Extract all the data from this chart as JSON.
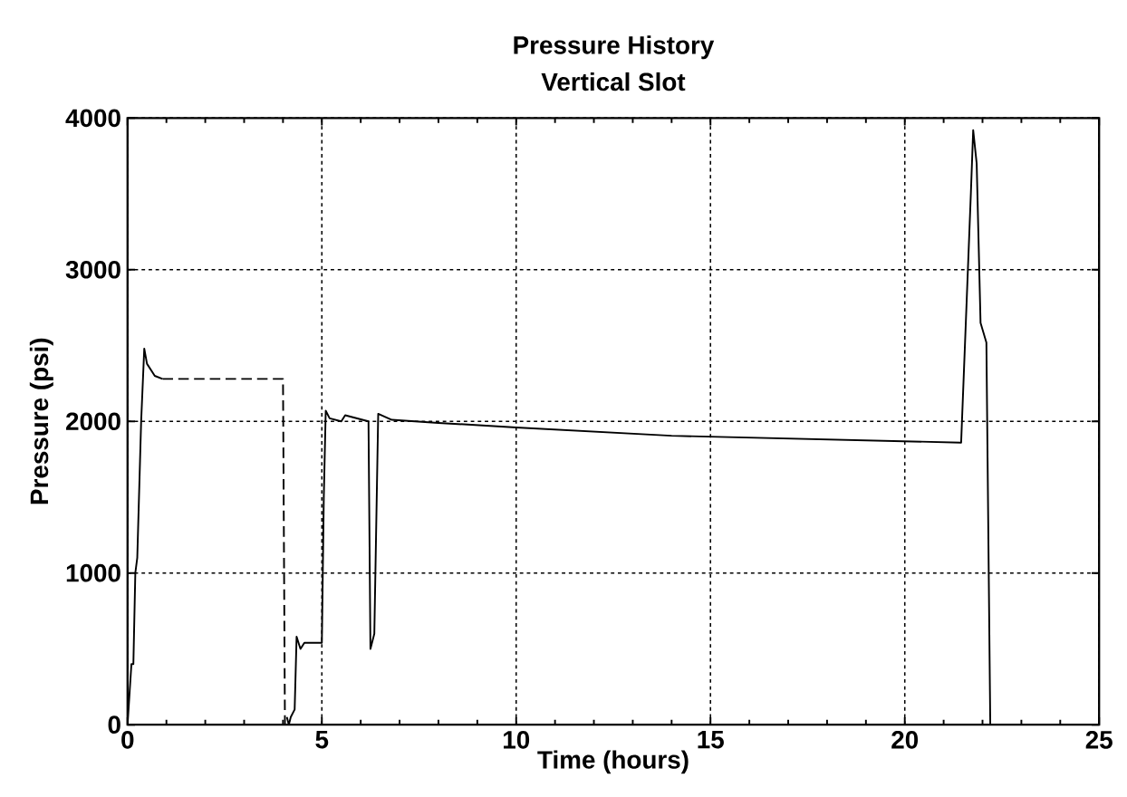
{
  "chart_data": {
    "type": "line",
    "title": "Pressure History",
    "subtitle": "Vertical Slot",
    "xlabel": "Time (hours)",
    "ylabel": "Pressure (psi)",
    "xlim": [
      0,
      25
    ],
    "ylim": [
      0,
      4000
    ],
    "xticks": [
      0,
      5,
      10,
      15,
      20,
      25
    ],
    "yticks": [
      0,
      1000,
      2000,
      3000,
      4000
    ],
    "grid": true,
    "series": [
      {
        "color": "#000000",
        "line_style": "solid",
        "x": [
          0,
          0.1,
          0.15,
          0.2,
          0.25,
          0.35,
          0.43,
          0.5,
          0.7,
          0.9
        ],
        "values": [
          0,
          400,
          400,
          1000,
          1100,
          2000,
          2480,
          2380,
          2300,
          2280
        ]
      },
      {
        "color": "#000000",
        "line_style": "dashed",
        "x": [
          0.9,
          4.0,
          4.05
        ],
        "values": [
          2280,
          2280,
          0
        ]
      },
      {
        "color": "#000000",
        "line_style": "solid",
        "x": [
          4.1,
          4.15,
          4.2,
          4.3,
          4.35,
          4.45,
          4.55,
          5.0,
          5.05,
          5.1,
          5.2,
          5.5,
          5.6,
          6.2,
          6.25,
          6.35,
          6.45,
          6.8,
          8,
          10,
          14,
          21.45,
          21.7,
          21.76,
          21.85,
          21.95,
          22.1,
          22.2
        ],
        "values": [
          50,
          0,
          50,
          100,
          580,
          500,
          540,
          540,
          1500,
          2070,
          2020,
          2000,
          2040,
          2000,
          500,
          600,
          2050,
          2010,
          1990,
          1960,
          1905,
          1860,
          3500,
          3920,
          3700,
          2650,
          2520,
          0
        ]
      }
    ]
  }
}
